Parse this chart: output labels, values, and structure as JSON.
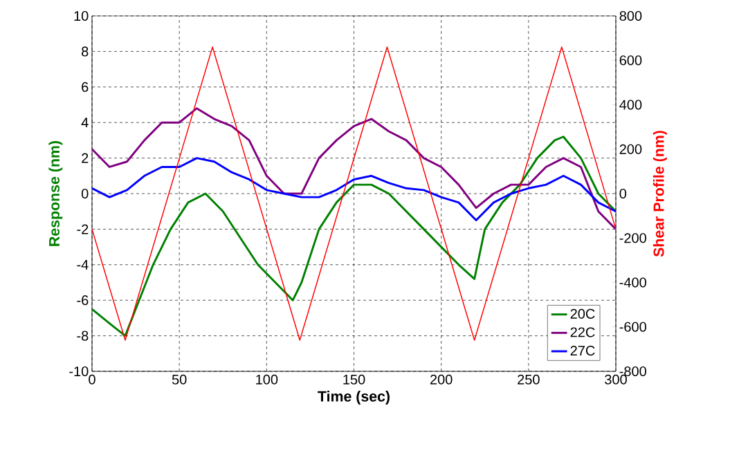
{
  "chart_data": {
    "type": "line",
    "xlabel": "Time (sec)",
    "ylabel": "Response (nm)",
    "y2label": "Shear Profile (nm)",
    "xlim": [
      0,
      300
    ],
    "xticks": [
      0,
      50,
      100,
      150,
      200,
      250,
      300
    ],
    "ylim": [
      -10,
      10
    ],
    "yticks": [
      -10,
      -8,
      -6,
      -4,
      -2,
      0,
      2,
      4,
      6,
      8,
      10
    ],
    "y2lim": [
      -800,
      800
    ],
    "y2ticks": [
      -800,
      -600,
      -400,
      -200,
      0,
      200,
      400,
      600,
      800
    ],
    "grid": true,
    "legend": "bottom right",
    "marker": "none",
    "line_style": "solid",
    "series": [
      {
        "name": "20C",
        "color": "#008000",
        "x": [
          0,
          10,
          19,
          25,
          35,
          45,
          55,
          65,
          75,
          85,
          95,
          105,
          115,
          120,
          130,
          140,
          150,
          160,
          170,
          180,
          190,
          200,
          210,
          219,
          225,
          235,
          245,
          255,
          265,
          270,
          280,
          290,
          300
        ],
        "values": [
          -6.5,
          -7.3,
          -8,
          -6.5,
          -4,
          -2,
          -0.5,
          0,
          -1,
          -2.5,
          -4,
          -5,
          -6,
          -5,
          -2,
          -0.5,
          0.5,
          0.5,
          0,
          -1,
          -2,
          -3,
          -4,
          -4.8,
          -2,
          -0.5,
          0.5,
          2,
          3,
          3.2,
          2,
          0,
          -1
        ]
      },
      {
        "name": "22C",
        "color": "#800080",
        "x": [
          0,
          10,
          20,
          30,
          40,
          50,
          60,
          70,
          80,
          90,
          100,
          110,
          120,
          130,
          140,
          150,
          160,
          170,
          180,
          190,
          200,
          210,
          220,
          230,
          240,
          250,
          260,
          270,
          280,
          290,
          300
        ],
        "values": [
          2.5,
          1.5,
          1.8,
          3,
          4,
          4,
          4.8,
          4.2,
          3.8,
          3,
          1,
          0,
          0,
          2,
          3,
          3.8,
          4.2,
          3.5,
          3,
          2,
          1.5,
          0.5,
          -0.8,
          0,
          0.5,
          0.5,
          1.5,
          2,
          1.5,
          -1,
          -2
        ]
      },
      {
        "name": "27C",
        "color": "#0000ff",
        "x": [
          0,
          10,
          20,
          30,
          40,
          50,
          60,
          70,
          80,
          90,
          100,
          110,
          120,
          130,
          140,
          150,
          160,
          170,
          180,
          190,
          200,
          210,
          220,
          230,
          240,
          250,
          260,
          270,
          280,
          290,
          300
        ],
        "values": [
          0.3,
          -0.2,
          0.2,
          1,
          1.5,
          1.5,
          2,
          1.8,
          1.2,
          0.8,
          0.2,
          0,
          -0.2,
          -0.2,
          0.2,
          0.8,
          1,
          0.6,
          0.3,
          0.2,
          -0.2,
          -0.5,
          -1.5,
          -0.5,
          0,
          0.3,
          0.5,
          1,
          0.5,
          -0.5,
          -1
        ]
      },
      {
        "color": "#ff0000",
        "axis": "y2",
        "x": [
          0,
          19,
          69,
          119,
          169,
          219,
          269,
          300
        ],
        "values": [
          -160,
          -660,
          660,
          -660,
          660,
          -660,
          660,
          -160
        ]
      }
    ]
  }
}
